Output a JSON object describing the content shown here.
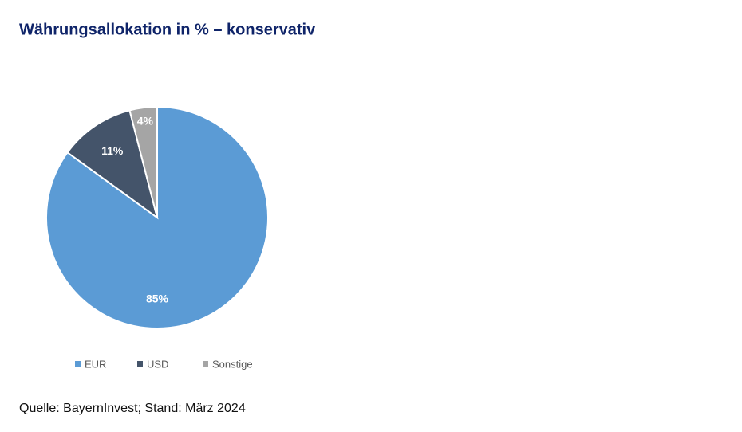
{
  "chart_data": {
    "type": "pie",
    "title": "Währungsallokation in % – konservativ",
    "categories": [
      "EUR",
      "USD",
      "Sonstige"
    ],
    "values": [
      85,
      11,
      4
    ],
    "value_labels": [
      "85%",
      "11%",
      "4%"
    ],
    "colors": [
      "#5b9bd5",
      "#44546a",
      "#a5a5a5"
    ],
    "legend": "bottom",
    "source": "Quelle: BayernInvest; Stand: März 2024"
  }
}
